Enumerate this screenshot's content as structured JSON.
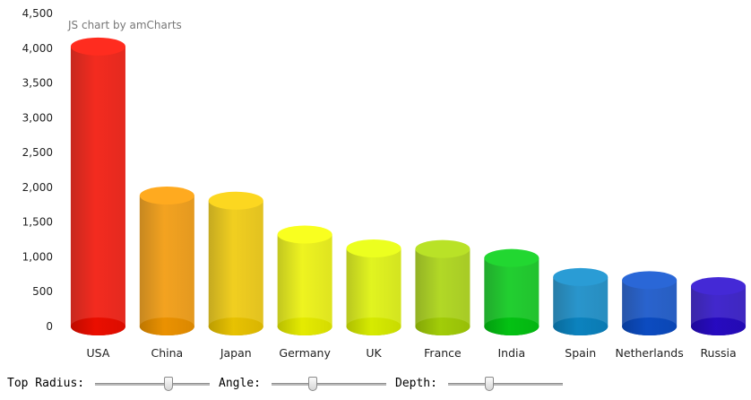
{
  "chart_data": {
    "type": "bar",
    "style": "3d-cylinder",
    "credit": "JS chart by amCharts",
    "categories": [
      "USA",
      "China",
      "Japan",
      "Germany",
      "UK",
      "France",
      "India",
      "Spain",
      "Netherlands",
      "Russia"
    ],
    "values": [
      4025,
      1882,
      1809,
      1322,
      1122,
      1114,
      984,
      711,
      665,
      580
    ],
    "colors": [
      "#FF0F00",
      "#FF9E01",
      "#FCD202",
      "#F8FF01",
      "#E9FF01",
      "#B0DE09",
      "#04D215",
      "#0D8ECF",
      "#0D52D1",
      "#2A0CD0"
    ],
    "yticks": [
      0,
      500,
      1000,
      1500,
      2000,
      2500,
      3000,
      3500,
      4000,
      4500
    ],
    "ylim": [
      0,
      4500
    ],
    "grid": false,
    "xlabel": "",
    "ylabel": ""
  },
  "controls": {
    "top_radius": {
      "label": "Top Radius:",
      "value": 0.65
    },
    "angle": {
      "label": "Angle:",
      "value": 0.35
    },
    "depth": {
      "label": "Depth:",
      "value": 0.35
    }
  }
}
